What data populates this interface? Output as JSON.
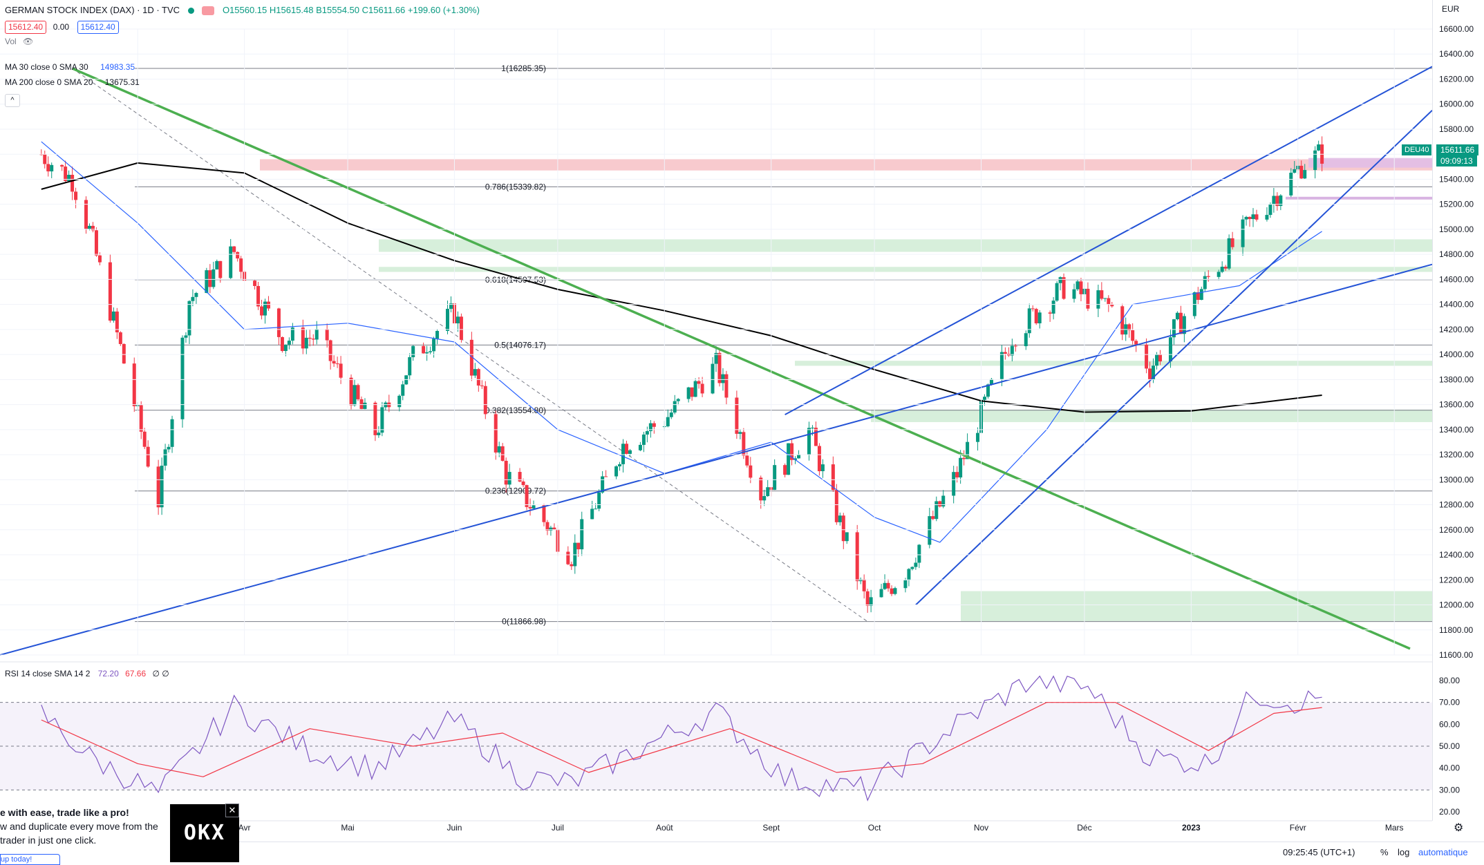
{
  "header": {
    "title": "GERMAN STOCK INDEX (DAX) · 1D · TVC",
    "ohlc": "O15560.15 H15615.48 B15554.50 C15611.66 +199.60 (+1.30%)",
    "bid": "15612.40",
    "spread": "0.00",
    "ask": "15612.40",
    "vol_label": "Vol"
  },
  "indicators": {
    "ma30_label": "MA 30 close 0 SMA 30",
    "ma30_value": "14983.35",
    "ma200_label": "MA 200 close 0 SMA 20",
    "ma200_value": "13675.31",
    "rsi_label": "RSI 14 close SMA 14 2",
    "rsi_value": "72.20",
    "rsi_sma_value": "67.66",
    "rsi_extra": "∅ ∅"
  },
  "right_axis": {
    "currency": "EUR",
    "ticks": [
      "16600.00",
      "16400.00",
      "16200.00",
      "16000.00",
      "15800.00",
      "15600.00",
      "15400.00",
      "15200.00",
      "15000.00",
      "14800.00",
      "14600.00",
      "14400.00",
      "14200.00",
      "14000.00",
      "13800.00",
      "13600.00",
      "13400.00",
      "13200.00",
      "13000.00",
      "12800.00",
      "12600.00",
      "12400.00",
      "12200.00",
      "12000.00",
      "11800.00",
      "11600.00"
    ],
    "rsi_ticks": [
      "80.00",
      "70.00",
      "60.00",
      "50.00",
      "40.00",
      "30.00",
      "20.00"
    ],
    "price_tag": "15611.66",
    "countdown": "09:09:13",
    "symbol_tag": "DEU40"
  },
  "time_axis": {
    "months": [
      "Mars",
      "Avr",
      "Mai",
      "Juin",
      "Juil",
      "Août",
      "Sept",
      "Oct",
      "Nov",
      "Déc",
      "2023",
      "Févr",
      "Mars"
    ]
  },
  "bottom_bar": {
    "time": "09:25:45 (UTC+1)",
    "percent": "%",
    "log": "log",
    "auto": "automatique"
  },
  "ad": {
    "headline": "e with ease, trade like a pro!",
    "line1": "w and duplicate every move from the",
    "line2": "trader in just one click.",
    "button": "up today!",
    "logo": "OKX",
    "close": "✕"
  },
  "fib_labels": [
    "1(16285.35)",
    "0.786(15339.82)",
    "0.618(14597.53)",
    "0.5(14076.17)",
    "0.382(13554.80)",
    "0.236(12909.72)",
    "0(11866.98)"
  ],
  "chart_data": [
    {
      "type": "candlestick",
      "title": "GERMAN STOCK INDEX (DAX) · 1D · TVC",
      "xlabel": "",
      "ylabel": "",
      "ylim": [
        11600,
        16600
      ],
      "grid": true,
      "x_ticks": [
        "Mars",
        "Avr",
        "Mai",
        "Juin",
        "Juil",
        "Août",
        "Sept",
        "Oct",
        "Nov",
        "Déc",
        "2023",
        "Févr",
        "Mars"
      ],
      "close_points": [
        {
          "date": "2022-02-01",
          "close": 15600
        },
        {
          "date": "2022-02-10",
          "close": 15400
        },
        {
          "date": "2022-02-15",
          "close": 14990
        },
        {
          "date": "2022-02-24",
          "close": 14050
        },
        {
          "date": "2022-03-07",
          "close": 12830
        },
        {
          "date": "2022-03-16",
          "close": 14440
        },
        {
          "date": "2022-03-29",
          "close": 14820
        },
        {
          "date": "2022-04-12",
          "close": 14120
        },
        {
          "date": "2022-04-22",
          "close": 14140
        },
        {
          "date": "2022-05-09",
          "close": 13380
        },
        {
          "date": "2022-05-20",
          "close": 13980
        },
        {
          "date": "2022-06-01",
          "close": 14340
        },
        {
          "date": "2022-06-16",
          "close": 13040
        },
        {
          "date": "2022-07-05",
          "close": 12400
        },
        {
          "date": "2022-07-20",
          "close": 13280
        },
        {
          "date": "2022-08-01",
          "close": 13480
        },
        {
          "date": "2022-08-16",
          "close": 13910
        },
        {
          "date": "2022-08-29",
          "close": 12890
        },
        {
          "date": "2022-09-12",
          "close": 13400
        },
        {
          "date": "2022-09-29",
          "close": 11980
        },
        {
          "date": "2022-10-10",
          "close": 12270
        },
        {
          "date": "2022-10-25",
          "close": 13050
        },
        {
          "date": "2022-11-10",
          "close": 14150
        },
        {
          "date": "2022-11-25",
          "close": 14540
        },
        {
          "date": "2022-12-09",
          "close": 14370
        },
        {
          "date": "2022-12-20",
          "close": 13890
        },
        {
          "date": "2023-01-06",
          "close": 14610
        },
        {
          "date": "2023-01-19",
          "close": 15080
        },
        {
          "date": "2023-02-02",
          "close": 15510
        },
        {
          "date": "2023-02-08",
          "close": 15611.66
        }
      ],
      "ma30_points": [
        {
          "date": "2022-02-01",
          "v": 15700
        },
        {
          "date": "2022-03-01",
          "v": 15050
        },
        {
          "date": "2022-04-01",
          "v": 14200
        },
        {
          "date": "2022-05-01",
          "v": 14250
        },
        {
          "date": "2022-06-01",
          "v": 14100
        },
        {
          "date": "2022-07-01",
          "v": 13400
        },
        {
          "date": "2022-08-01",
          "v": 13050
        },
        {
          "date": "2022-09-01",
          "v": 13300
        },
        {
          "date": "2022-10-01",
          "v": 12700
        },
        {
          "date": "2022-10-20",
          "v": 12500
        },
        {
          "date": "2022-11-20",
          "v": 13400
        },
        {
          "date": "2022-12-15",
          "v": 14400
        },
        {
          "date": "2023-01-15",
          "v": 14550
        },
        {
          "date": "2023-02-08",
          "v": 14983.35
        }
      ],
      "ma200_points": [
        {
          "date": "2022-02-01",
          "v": 15320
        },
        {
          "date": "2022-03-01",
          "v": 15530
        },
        {
          "date": "2022-04-01",
          "v": 15450
        },
        {
          "date": "2022-05-01",
          "v": 15050
        },
        {
          "date": "2022-06-01",
          "v": 14750
        },
        {
          "date": "2022-07-01",
          "v": 14520
        },
        {
          "date": "2022-08-01",
          "v": 14350
        },
        {
          "date": "2022-09-01",
          "v": 14150
        },
        {
          "date": "2022-10-01",
          "v": 13880
        },
        {
          "date": "2022-11-01",
          "v": 13630
        },
        {
          "date": "2022-12-01",
          "v": 13540
        },
        {
          "date": "2023-01-01",
          "v": 13550
        },
        {
          "date": "2023-02-08",
          "v": 13675.31
        }
      ],
      "fibonacci": [
        {
          "level": "1",
          "price": 16285.35
        },
        {
          "level": "0.786",
          "price": 15339.82
        },
        {
          "level": "0.618",
          "price": 14597.53
        },
        {
          "level": "0.5",
          "price": 14076.17
        },
        {
          "level": "0.382",
          "price": 13554.8
        },
        {
          "level": "0.236",
          "price": 12909.72
        },
        {
          "level": "0",
          "price": 11866.98
        }
      ],
      "zones": [
        {
          "color": "#f7c4c9",
          "from": 15470,
          "to": 15560
        },
        {
          "color": "#d3edd7",
          "from": 14820,
          "to": 14920
        },
        {
          "color": "#d3edd7",
          "from": 14660,
          "to": 14700
        },
        {
          "color": "#d3edd7",
          "from": 13910,
          "to": 13950
        },
        {
          "color": "#d3edd7",
          "from": 13460,
          "to": 13560
        },
        {
          "color": "#d3edd7",
          "from": 11870,
          "to": 12110
        }
      ]
    },
    {
      "type": "line",
      "title": "RSI 14 close SMA 14 2",
      "ylim": [
        20,
        85
      ],
      "bands": [
        30,
        70
      ],
      "series": [
        {
          "name": "RSI",
          "color": "#7e57c2",
          "points": [
            {
              "date": "2022-02-01",
              "v": 65
            },
            {
              "date": "2022-02-15",
              "v": 45
            },
            {
              "date": "2022-03-07",
              "v": 28
            },
            {
              "date": "2022-03-29",
              "v": 68
            },
            {
              "date": "2022-04-20",
              "v": 48
            },
            {
              "date": "2022-05-09",
              "v": 40
            },
            {
              "date": "2022-06-01",
              "v": 62
            },
            {
              "date": "2022-06-20",
              "v": 36
            },
            {
              "date": "2022-07-05",
              "v": 33
            },
            {
              "date": "2022-08-16",
              "v": 66
            },
            {
              "date": "2022-09-05",
              "v": 35
            },
            {
              "date": "2022-09-29",
              "v": 30
            },
            {
              "date": "2022-10-25",
              "v": 60
            },
            {
              "date": "2022-11-15",
              "v": 80
            },
            {
              "date": "2022-12-02",
              "v": 77
            },
            {
              "date": "2022-12-20",
              "v": 45
            },
            {
              "date": "2023-01-06",
              "v": 42
            },
            {
              "date": "2023-01-19",
              "v": 74
            },
            {
              "date": "2023-02-01",
              "v": 70
            },
            {
              "date": "2023-02-08",
              "v": 72.2
            }
          ]
        },
        {
          "name": "RSI SMA",
          "color": "#f23645",
          "points": [
            {
              "date": "2022-02-01",
              "v": 62
            },
            {
              "date": "2022-03-01",
              "v": 42
            },
            {
              "date": "2022-03-20",
              "v": 36
            },
            {
              "date": "2022-04-20",
              "v": 58
            },
            {
              "date": "2022-05-20",
              "v": 50
            },
            {
              "date": "2022-06-15",
              "v": 56
            },
            {
              "date": "2022-07-10",
              "v": 38
            },
            {
              "date": "2022-08-20",
              "v": 58
            },
            {
              "date": "2022-09-20",
              "v": 38
            },
            {
              "date": "2022-10-15",
              "v": 42
            },
            {
              "date": "2022-11-20",
              "v": 70
            },
            {
              "date": "2022-12-10",
              "v": 70
            },
            {
              "date": "2023-01-06",
              "v": 48
            },
            {
              "date": "2023-01-25",
              "v": 65
            },
            {
              "date": "2023-02-08",
              "v": 67.66
            }
          ]
        }
      ]
    }
  ],
  "colors": {
    "up": "#089981",
    "down": "#f23645",
    "ma30": "#2962ff",
    "ma200": "#000000",
    "trend_green": "#4caf50",
    "trend_blue": "#2453d6",
    "rsi": "#7e57c2",
    "rsi_sma": "#f23645"
  }
}
